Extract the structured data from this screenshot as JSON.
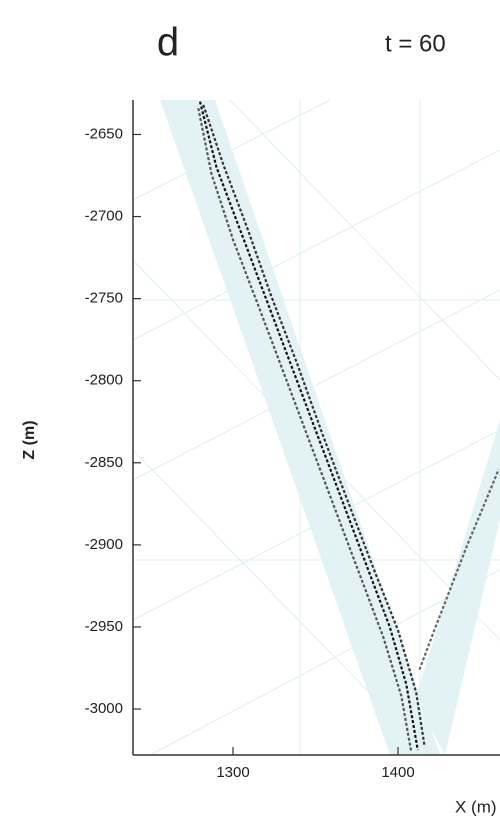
{
  "chart_data": {
    "type": "line",
    "panel_label": "d",
    "title": "t = 60",
    "xlabel": "X (m)",
    "ylabel": "Z (m)",
    "xlim": [
      1239.4,
      1461.8
    ],
    "ylim": [
      -3028,
      -2629
    ],
    "xticks": [
      1300,
      1400
    ],
    "yticks": [
      -2650,
      -2700,
      -2750,
      -2800,
      -2850,
      -2900,
      -2950,
      -3000
    ],
    "series": [
      {
        "color": "#111111",
        "x": [
          1280,
          1290,
          1305,
          1320,
          1335,
          1350,
          1365,
          1380,
          1395,
          1405,
          1412
        ],
        "values": [
          -2630,
          -2670,
          -2710,
          -2750,
          -2790,
          -2830,
          -2870,
          -2910,
          -2950,
          -2985,
          -3025
        ]
      },
      {
        "color": "#333333",
        "x": [
          1282,
          1294,
          1309,
          1323,
          1339,
          1354,
          1369,
          1385,
          1400,
          1411,
          1416
        ],
        "values": [
          -2632,
          -2668,
          -2708,
          -2748,
          -2790,
          -2832,
          -2872,
          -2914,
          -2952,
          -2990,
          -3022
        ]
      },
      {
        "color": "#555555",
        "x": [
          1279,
          1287,
          1300,
          1316,
          1331,
          1346,
          1361,
          1376,
          1391,
          1402,
          1408
        ],
        "values": [
          -2634,
          -2674,
          -2714,
          -2756,
          -2796,
          -2836,
          -2876,
          -2916,
          -2956,
          -2992,
          -3026
        ]
      },
      {
        "color": "#666666",
        "x": [
          1413,
          1422,
          1432,
          1442,
          1452,
          1461
        ],
        "values": [
          -2976,
          -2952,
          -2926,
          -2900,
          -2876,
          -2854
        ]
      }
    ]
  }
}
